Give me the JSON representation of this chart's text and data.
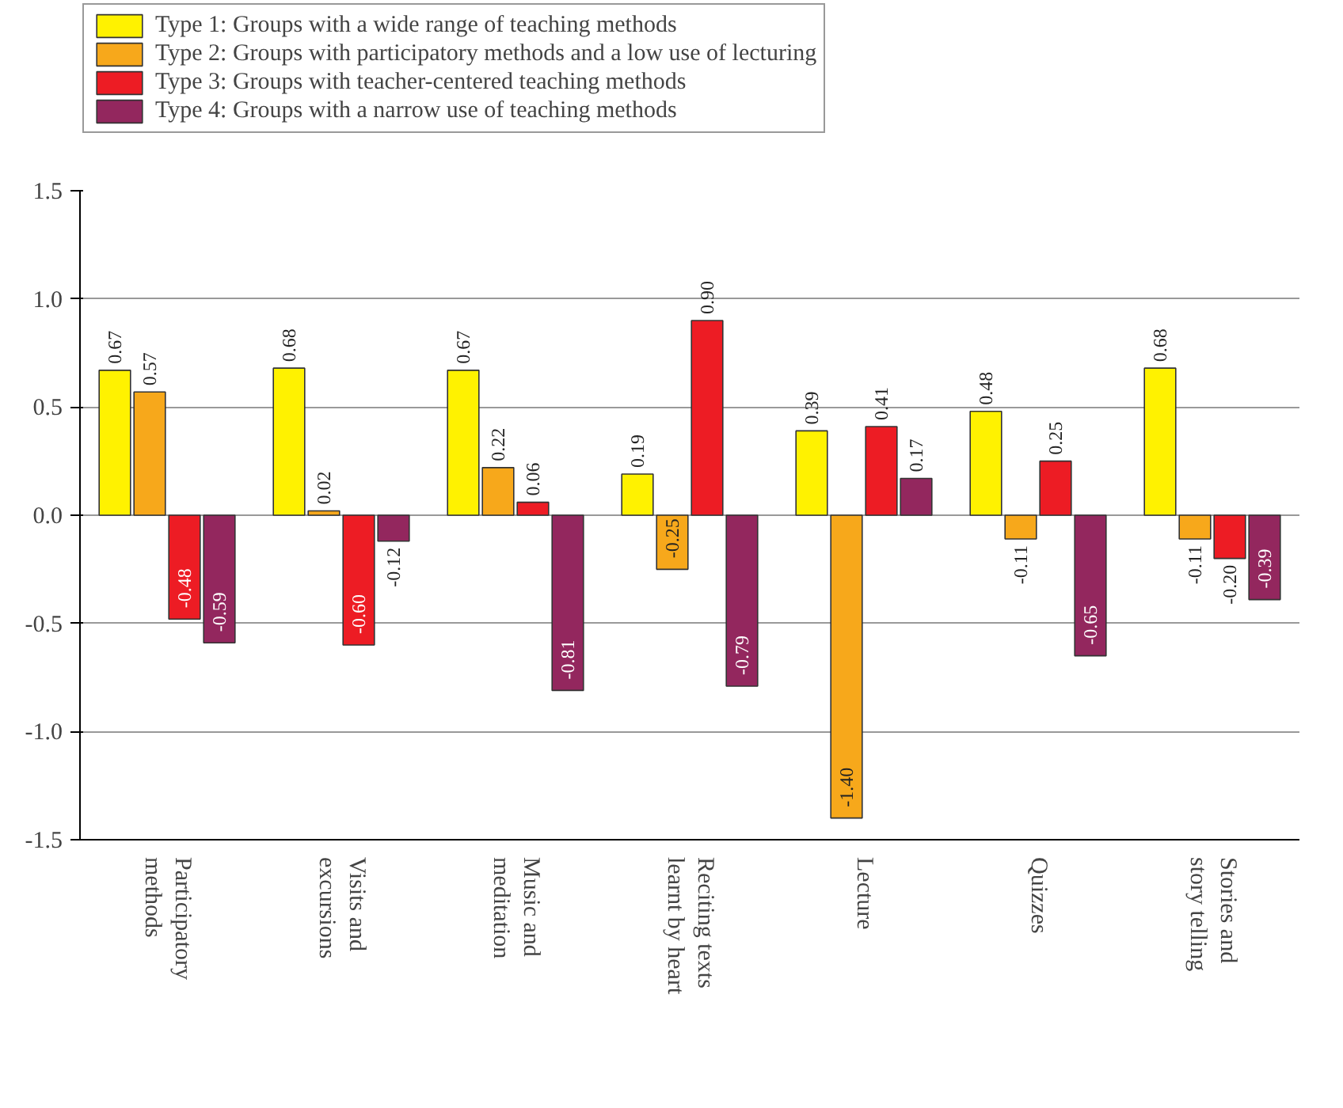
{
  "chart_data": {
    "type": "bar",
    "categories": [
      "Participatory\nmethods",
      "Visits and\nexcursions",
      "Music and\nmeditation",
      "Reciting texts\nlearnt by heart",
      "Lecture",
      "Quizzes",
      "Stories and\nstory telling"
    ],
    "series": [
      {
        "name": "Type 1: Groups with a wide range of teaching methods",
        "color": "#fff200",
        "values": [
          0.67,
          0.68,
          0.67,
          0.19,
          0.39,
          0.48,
          0.68
        ],
        "value_labels": [
          "0.67",
          "0.68",
          "0.67",
          "0.19",
          "0.39",
          "0.48",
          "0.68"
        ]
      },
      {
        "name": "Type 2: Groups with participatory methods and a low use of lecturing",
        "color": "#f7a81b",
        "values": [
          0.57,
          0.02,
          0.22,
          -0.25,
          -1.4,
          -0.11,
          -0.11
        ],
        "value_labels": [
          "0.57",
          "0.02",
          "0.22",
          "-0.25",
          "-1.40",
          "-0.11",
          "-0.11"
        ]
      },
      {
        "name": "Type 3: Groups with teacher-centered teaching methods",
        "color": "#ed1c24",
        "values": [
          -0.48,
          -0.6,
          0.06,
          0.9,
          0.41,
          0.25,
          -0.2
        ],
        "value_labels": [
          "-0.48",
          "-0.60",
          "0.06",
          "0.90",
          "0.41",
          "0.25",
          "-0.20"
        ]
      },
      {
        "name": "Type 4: Groups with a narrow use of teaching methods",
        "color": "#93275e",
        "values": [
          -0.59,
          -0.12,
          -0.81,
          -0.79,
          0.17,
          -0.65,
          -0.39
        ],
        "value_labels": [
          "-0.59",
          "-0.12",
          "-0.81",
          "-0.79",
          "0.17",
          "-0.65",
          "-0.39"
        ]
      }
    ],
    "ylim": [
      -1.5,
      1.5
    ],
    "yticks": [
      {
        "value": -1.5,
        "label": "-1.5"
      },
      {
        "value": -1.0,
        "label": "-1.0"
      },
      {
        "value": -0.5,
        "label": "-0.5"
      },
      {
        "value": 0.0,
        "label": "0.0"
      },
      {
        "value": 0.5,
        "label": "0.5"
      },
      {
        "value": 1.0,
        "label": "1.0"
      },
      1.5
    ],
    "grid": "y",
    "legend": "top left"
  }
}
